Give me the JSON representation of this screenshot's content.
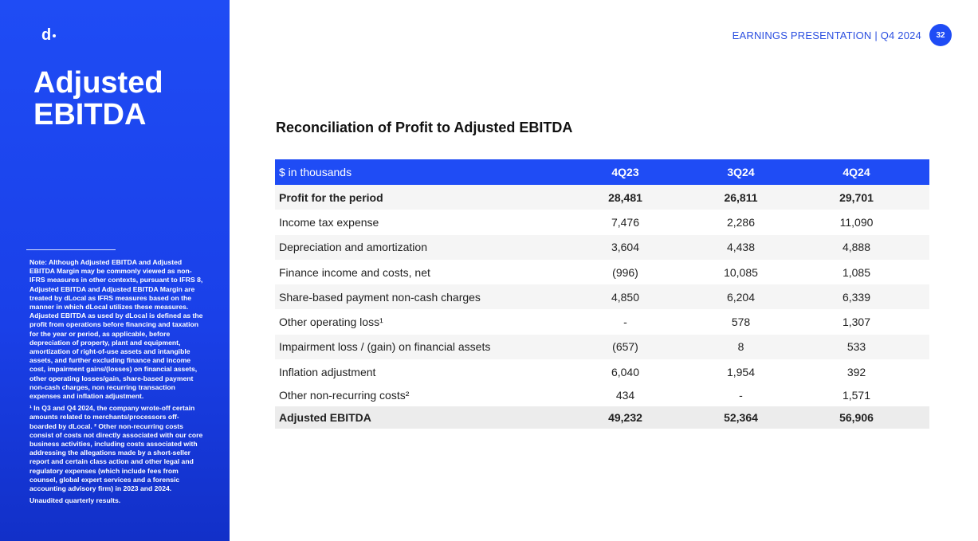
{
  "sidebar": {
    "logo": "d",
    "title_line1": "Adjusted",
    "title_line2": "EBITDA",
    "note1": "Note: Although Adjusted EBITDA and Adjusted EBITDA Margin may be commonly viewed as non-IFRS measures in other contexts, pursuant to IFRS 8, Adjusted EBITDA and Adjusted EBITDA Margin are treated by dLocal as IFRS measures based on the manner in which dLocal utilizes these measures. Adjusted EBITDA as used by dLocal is defined as the profit from operations before financing and taxation for the year or period, as applicable, before depreciation of property, plant and equipment, amortization of right-of-use assets and intangible assets, and further excluding finance and income cost, impairment gains/(losses) on financial assets, other operating losses/gain, share-based payment non-cash charges, non recurring transaction expenses and inflation adjustment.",
    "note2": "¹ In Q3 and Q4 2024, the company wrote-off certain amounts related to merchants/processors off-boarded by dLocal. ² Other non-recurring costs consist of costs not directly associated with our core business activities, including costs associated with addressing the allegations made by a short-seller report and certain class action and other legal and regulatory expenses (which include fees from counsel, global expert services and a forensic accounting advisory firm) in 2023 and 2024.",
    "note3": "Unaudited quarterly results."
  },
  "header": {
    "text": "EARNINGS PRESENTATION | Q4 2024",
    "page": "32"
  },
  "section_title": "Reconciliation of Profit to Adjusted EBITDA",
  "table": {
    "headers": [
      "$ in thousands",
      "4Q23",
      "3Q24",
      "4Q24"
    ],
    "rows": [
      {
        "label": "Profit for the period",
        "v": [
          "28,481",
          "26,811",
          "29,701"
        ]
      },
      {
        "label": "Income tax expense",
        "v": [
          "7,476",
          "2,286",
          "11,090"
        ]
      },
      {
        "label": "Depreciation and amortization",
        "v": [
          "3,604",
          "4,438",
          "4,888"
        ]
      },
      {
        "label": "Finance income and costs, net",
        "v": [
          "(996)",
          "10,085",
          "1,085"
        ]
      },
      {
        "label": "Share-based payment non-cash charges",
        "v": [
          "4,850",
          "6,204",
          "6,339"
        ]
      },
      {
        "label": "Other operating loss¹",
        "v": [
          "-",
          "578",
          "1,307"
        ]
      },
      {
        "label": "Impairment loss / (gain) on financial assets",
        "v": [
          "(657)",
          "8",
          "533"
        ]
      },
      {
        "label": "Inflation adjustment",
        "v": [
          "6,040",
          "1,954",
          "392"
        ]
      },
      {
        "label": "Other non-recurring costs²",
        "v": [
          "434",
          "-",
          "1,571"
        ]
      },
      {
        "label": "Adjusted EBITDA",
        "v": [
          "49,232",
          "52,364",
          "56,906"
        ]
      }
    ]
  }
}
